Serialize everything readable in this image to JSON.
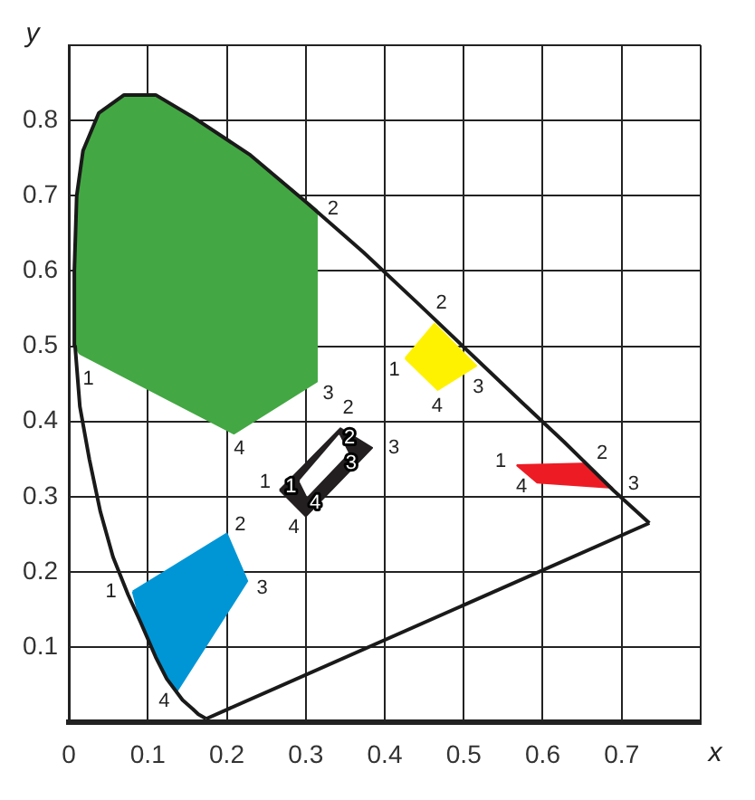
{
  "chart_data": {
    "type": "line",
    "xlabel": "x",
    "ylabel": "y",
    "xlim": [
      0,
      0.8
    ],
    "ylim": [
      0,
      0.9
    ],
    "xticks": [
      0,
      0.1,
      0.2,
      0.3,
      0.4,
      0.5,
      0.6,
      0.7,
      {
        "value": 0.8,
        "label": null
      }
    ],
    "yticks": [
      {
        "value": 0,
        "label": null
      },
      0.1,
      0.2,
      0.3,
      0.4,
      0.5,
      0.6,
      0.7,
      0.8,
      {
        "value": 0.9,
        "label": null
      }
    ],
    "grid": true,
    "marker": "none",
    "series": [
      {
        "type": "line",
        "color": "#1a1a1a",
        "x": [
          0.174,
          0.164,
          0.157,
          0.144,
          0.124,
          0.11,
          0.091,
          0.075,
          0.056,
          0.04,
          0.026,
          0.014,
          0.008,
          0.007,
          0.01,
          0.018,
          0.038,
          0.07,
          0.11,
          0.155,
          0.23,
          0.3,
          0.373,
          0.444,
          0.512,
          0.575,
          0.627,
          0.69,
          0.735
        ],
        "values": [
          0.005,
          0.011,
          0.018,
          0.03,
          0.058,
          0.087,
          0.133,
          0.17,
          0.22,
          0.28,
          0.35,
          0.42,
          0.5,
          0.6,
          0.7,
          0.76,
          0.81,
          0.834,
          0.834,
          0.806,
          0.754,
          0.692,
          0.625,
          0.555,
          0.487,
          0.424,
          0.373,
          0.308,
          0.265
        ]
      },
      {
        "type": "line",
        "color": "#1a1a1a",
        "x": [
          0.174,
          0.735
        ],
        "values": [
          0.005,
          0.265
        ]
      },
      {
        "type": "area",
        "color": "#43a843",
        "x": [
          0.014,
          0.008,
          0.007,
          0.01,
          0.018,
          0.038,
          0.07,
          0.11,
          0.155,
          0.23,
          0.314,
          0.314,
          0.209,
          0.014
        ],
        "values": [
          0.49,
          0.5,
          0.6,
          0.7,
          0.76,
          0.81,
          0.834,
          0.834,
          0.806,
          0.754,
          0.681,
          0.453,
          0.384,
          0.49
        ]
      },
      {
        "type": "area",
        "color": "#0096d6",
        "x": [
          0.081,
          0.2,
          0.226,
          0.137,
          0.11,
          0.091,
          0.081
        ],
        "values": [
          0.174,
          0.251,
          0.188,
          0.042,
          0.087,
          0.133,
          0.174
        ]
      },
      {
        "type": "area",
        "color": "#fff200",
        "x": [
          0.426,
          0.463,
          0.516,
          0.467,
          0.426
        ],
        "values": [
          0.484,
          0.53,
          0.474,
          0.442,
          0.484
        ]
      },
      {
        "type": "area",
        "color": "#ed1c24",
        "x": [
          0.567,
          0.651,
          0.688,
          0.593,
          0.567
        ],
        "values": [
          0.342,
          0.344,
          0.312,
          0.319,
          0.342
        ]
      },
      {
        "type": "area",
        "color": "#231f20",
        "x": [
          0.267,
          0.344,
          0.384,
          0.3,
          0.267
        ],
        "values": [
          0.309,
          0.391,
          0.365,
          0.274,
          0.309
        ]
      },
      {
        "type": "area",
        "color": "#ffffff",
        "x": [
          0.293,
          0.342,
          0.353,
          0.302,
          0.293
        ],
        "values": [
          0.321,
          0.381,
          0.358,
          0.302,
          0.321
        ]
      }
    ],
    "annotations": [
      {
        "text": "1",
        "x": 0.014,
        "y": 0.49
      },
      {
        "text": "2",
        "x": 0.314,
        "y": 0.681
      },
      {
        "text": "3",
        "x": 0.314,
        "y": 0.453
      },
      {
        "text": "4",
        "x": 0.209,
        "y": 0.384
      },
      {
        "text": "1",
        "x": 0.426,
        "y": 0.484
      },
      {
        "text": "2",
        "x": 0.463,
        "y": 0.53
      },
      {
        "text": "3",
        "x": 0.516,
        "y": 0.474
      },
      {
        "text": "4",
        "x": 0.467,
        "y": 0.442
      },
      {
        "text": "1",
        "x": 0.567,
        "y": 0.342
      },
      {
        "text": "2",
        "x": 0.651,
        "y": 0.344
      },
      {
        "text": "3",
        "x": 0.688,
        "y": 0.312
      },
      {
        "text": "4",
        "x": 0.593,
        "y": 0.319
      },
      {
        "text": "1",
        "x": 0.081,
        "y": 0.174
      },
      {
        "text": "2",
        "x": 0.2,
        "y": 0.251
      },
      {
        "text": "3",
        "x": 0.226,
        "y": 0.188
      },
      {
        "text": "4",
        "x": 0.137,
        "y": 0.042
      },
      {
        "text": "1",
        "x": 0.267,
        "y": 0.309
      },
      {
        "text": "2",
        "x": 0.344,
        "y": 0.391
      },
      {
        "text": "3",
        "x": 0.384,
        "y": 0.365
      },
      {
        "text": "4",
        "x": 0.3,
        "y": 0.274
      },
      {
        "text": "1",
        "x": 0.293,
        "y": 0.321
      },
      {
        "text": "2",
        "x": 0.342,
        "y": 0.381
      },
      {
        "text": "3",
        "x": 0.353,
        "y": 0.358
      },
      {
        "text": "4",
        "x": 0.302,
        "y": 0.302
      }
    ]
  }
}
